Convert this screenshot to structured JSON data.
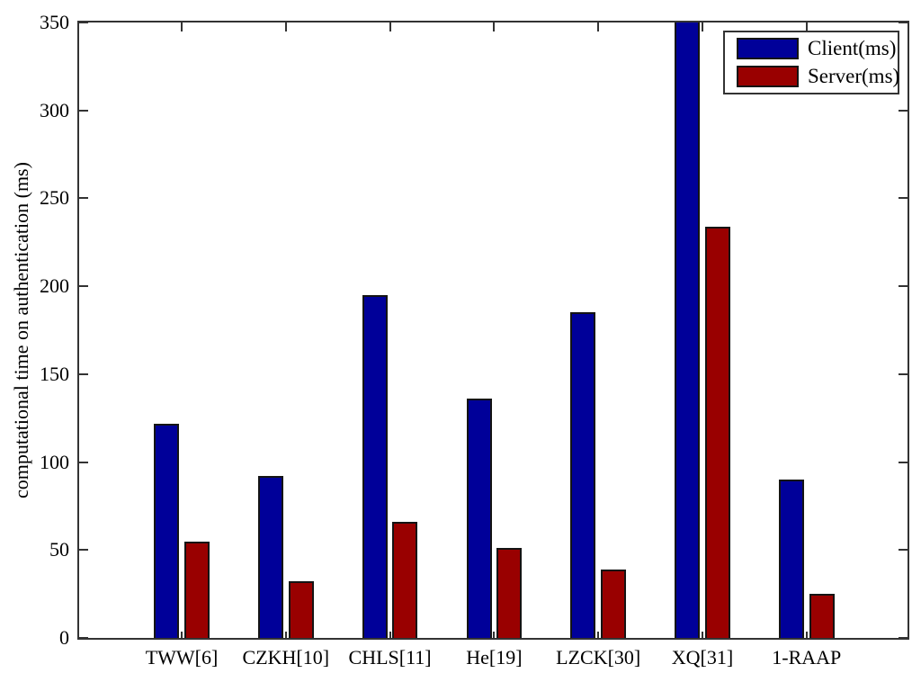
{
  "colors": {
    "client_bar": "#000099",
    "server_bar": "#990000",
    "axis": "#333333",
    "bar_border": "#141414",
    "background": "#ffffff",
    "text": "#000000"
  },
  "chart_data": {
    "type": "bar",
    "title": "",
    "xlabel": "",
    "ylabel": "computational time on authentication (ms)",
    "ylim": [
      0,
      350
    ],
    "yticks": [
      0,
      50,
      100,
      150,
      200,
      250,
      300,
      350
    ],
    "grid": false,
    "legend_position": "top-right",
    "categories": [
      "TWW[6]",
      "CZKH[10]",
      "CHLS[11]",
      "He[19]",
      "LZCK[30]",
      "XQ[31]",
      "1-RAAP"
    ],
    "series": [
      {
        "name": "Client(ms)",
        "color": "#000099",
        "values": [
          122,
          92,
          195,
          136,
          185,
          350,
          90
        ]
      },
      {
        "name": "Server(ms)",
        "color": "#990000",
        "values": [
          55,
          32,
          66,
          51,
          39,
          234,
          25
        ]
      }
    ]
  }
}
